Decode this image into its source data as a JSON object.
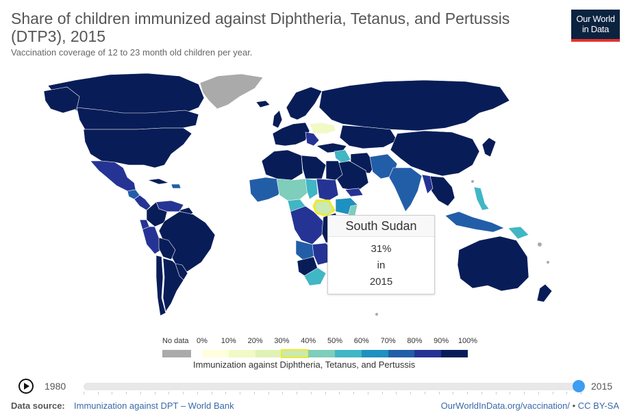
{
  "header": {
    "title": "Share of children immunized against Diphtheria, Tetanus, and Pertussis (DTP3), 2015",
    "subtitle": "Vaccination coverage of 12 to 23 month old children per year.",
    "logo_line1": "Our World",
    "logo_line2": "in Data"
  },
  "colors": {
    "no_data": "#aaaaaa",
    "ocean": "#ffffff",
    "border": "#ffffff",
    "highlight": "#f1e92a",
    "brand_navy": "#0c2340",
    "brand_red": "#e4322d",
    "accent": "#3d9df2"
  },
  "tooltip": {
    "country": "South Sudan",
    "value": "31%",
    "connector": "in",
    "year": "2015"
  },
  "legend": {
    "no_data_label": "No data",
    "ticks": [
      "0%",
      "10%",
      "20%",
      "30%",
      "40%",
      "50%",
      "60%",
      "70%",
      "80%",
      "90%",
      "100%"
    ],
    "bin_colors": [
      "#ffffdd",
      "#f1f9c6",
      "#e0f2b5",
      "#c9eab2",
      "#7fcdbb",
      "#41b6c4",
      "#1d91c0",
      "#225ea8",
      "#253494",
      "#081d58"
    ],
    "highlighted_bin": 3,
    "title": "Immunization against Diphtheria, Tetanus, and Pertussis"
  },
  "timeline": {
    "start_year": "1980",
    "end_year": "2015",
    "selected_fraction": 1.0
  },
  "footer": {
    "source_label": "Data source:",
    "source_link": "Immunization against DPT – World Bank",
    "url": "OurWorldInData.org/vaccination/",
    "separator": " • ",
    "license": "CC BY-SA"
  }
}
